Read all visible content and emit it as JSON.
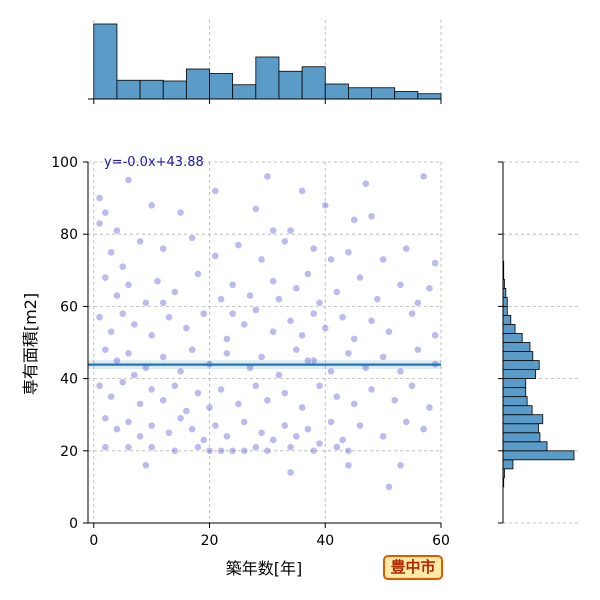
{
  "badge": {
    "label": "豊中市"
  },
  "colors": {
    "histogram": "#5b9bc8",
    "points": "#2a2ad0",
    "regression": "#1f77b4",
    "badge_border": "#e05a00",
    "badge_fill": "#ffe9a8"
  },
  "chart_data": {
    "type": "scatter",
    "xlabel": "築年数[年]",
    "ylabel": "専有面積[m2]",
    "xlim": [
      -1,
      60
    ],
    "ylim": [
      0,
      100
    ],
    "x_ticks": [
      0,
      20,
      40,
      60
    ],
    "y_ticks": [
      0,
      20,
      40,
      60,
      80,
      100
    ],
    "grid": true,
    "regression": {
      "equation": "y=-0.0x+43.88",
      "slope": 0.0,
      "intercept": 43.88
    },
    "x_histogram": {
      "bin_edges": [
        0,
        4,
        8,
        12,
        16,
        20,
        24,
        28,
        32,
        36,
        40,
        44,
        48,
        52,
        56,
        60
      ],
      "heights": [
        100,
        25,
        25,
        24,
        40,
        34,
        19,
        56,
        37,
        43,
        20,
        15,
        15,
        10,
        7
      ]
    },
    "y_histogram": {
      "bin_edges": [
        10,
        12.5,
        15,
        17.5,
        20,
        22.5,
        25,
        27.5,
        30,
        32.5,
        35,
        37.5,
        40,
        42.5,
        45,
        47.5,
        50,
        52.5,
        55,
        57.5,
        60,
        62.5,
        65,
        67.5,
        70,
        72.5,
        75,
        77.5,
        80,
        82.5,
        85,
        87.5,
        90,
        92.5,
        95,
        97.5,
        100
      ],
      "counts": [
        1,
        2,
        14,
        100,
        62,
        52,
        50,
        56,
        41,
        34,
        32,
        32,
        46,
        51,
        42,
        38,
        27,
        17,
        11,
        6,
        6,
        4,
        2,
        1,
        1,
        0,
        0,
        0,
        0,
        0,
        0,
        0,
        0,
        0,
        0,
        0
      ]
    },
    "points": [
      [
        1,
        90
      ],
      [
        2,
        86
      ],
      [
        4,
        81
      ],
      [
        6,
        95
      ],
      [
        10,
        88
      ],
      [
        15,
        86
      ],
      [
        21,
        92
      ],
      [
        28,
        87
      ],
      [
        30,
        96
      ],
      [
        34,
        81
      ],
      [
        36,
        92
      ],
      [
        40,
        88
      ],
      [
        45,
        84
      ],
      [
        47,
        94
      ],
      [
        57,
        96
      ],
      [
        1,
        83
      ],
      [
        3,
        75
      ],
      [
        5,
        71
      ],
      [
        8,
        78
      ],
      [
        12,
        76
      ],
      [
        17,
        79
      ],
      [
        21,
        74
      ],
      [
        25,
        77
      ],
      [
        29,
        73
      ],
      [
        33,
        78
      ],
      [
        38,
        76
      ],
      [
        41,
        73
      ],
      [
        44,
        75
      ],
      [
        50,
        73
      ],
      [
        54,
        76
      ],
      [
        59,
        72
      ],
      [
        2,
        68
      ],
      [
        4,
        63
      ],
      [
        6,
        66
      ],
      [
        9,
        61
      ],
      [
        11,
        67
      ],
      [
        14,
        64
      ],
      [
        18,
        69
      ],
      [
        22,
        62
      ],
      [
        24,
        66
      ],
      [
        27,
        63
      ],
      [
        31,
        67
      ],
      [
        32,
        62
      ],
      [
        35,
        65
      ],
      [
        37,
        69
      ],
      [
        39,
        61
      ],
      [
        42,
        64
      ],
      [
        46,
        68
      ],
      [
        49,
        62
      ],
      [
        53,
        66
      ],
      [
        56,
        61
      ],
      [
        58,
        65
      ],
      [
        1,
        57
      ],
      [
        3,
        53
      ],
      [
        5,
        58
      ],
      [
        7,
        55
      ],
      [
        10,
        52
      ],
      [
        13,
        57
      ],
      [
        16,
        54
      ],
      [
        19,
        58
      ],
      [
        23,
        51
      ],
      [
        26,
        55
      ],
      [
        28,
        59
      ],
      [
        31,
        53
      ],
      [
        34,
        56
      ],
      [
        36,
        52
      ],
      [
        38,
        58
      ],
      [
        40,
        54
      ],
      [
        43,
        57
      ],
      [
        45,
        51
      ],
      [
        48,
        56
      ],
      [
        51,
        53
      ],
      [
        55,
        58
      ],
      [
        59,
        52
      ],
      [
        2,
        48
      ],
      [
        4,
        45
      ],
      [
        6,
        47
      ],
      [
        9,
        43
      ],
      [
        12,
        46
      ],
      [
        15,
        42
      ],
      [
        17,
        48
      ],
      [
        20,
        44
      ],
      [
        23,
        47
      ],
      [
        27,
        43
      ],
      [
        29,
        46
      ],
      [
        32,
        41
      ],
      [
        35,
        48
      ],
      [
        38,
        45
      ],
      [
        41,
        42
      ],
      [
        44,
        47
      ],
      [
        47,
        43
      ],
      [
        50,
        46
      ],
      [
        53,
        42
      ],
      [
        56,
        48
      ],
      [
        59,
        44
      ],
      [
        1,
        38
      ],
      [
        3,
        35
      ],
      [
        5,
        39
      ],
      [
        8,
        33
      ],
      [
        10,
        37
      ],
      [
        12,
        34
      ],
      [
        14,
        38
      ],
      [
        16,
        31
      ],
      [
        18,
        36
      ],
      [
        20,
        32
      ],
      [
        22,
        37
      ],
      [
        25,
        33
      ],
      [
        28,
        38
      ],
      [
        30,
        34
      ],
      [
        33,
        36
      ],
      [
        36,
        32
      ],
      [
        39,
        38
      ],
      [
        42,
        35
      ],
      [
        45,
        33
      ],
      [
        48,
        37
      ],
      [
        52,
        34
      ],
      [
        55,
        38
      ],
      [
        58,
        32
      ],
      [
        2,
        29
      ],
      [
        4,
        26
      ],
      [
        6,
        28
      ],
      [
        8,
        24
      ],
      [
        10,
        27
      ],
      [
        13,
        25
      ],
      [
        15,
        29
      ],
      [
        17,
        26
      ],
      [
        19,
        23
      ],
      [
        21,
        27
      ],
      [
        23,
        24
      ],
      [
        26,
        28
      ],
      [
        29,
        25
      ],
      [
        31,
        23
      ],
      [
        33,
        27
      ],
      [
        35,
        24
      ],
      [
        37,
        26
      ],
      [
        39,
        22
      ],
      [
        41,
        28
      ],
      [
        43,
        23
      ],
      [
        46,
        27
      ],
      [
        50,
        24
      ],
      [
        54,
        28
      ],
      [
        57,
        26
      ],
      [
        2,
        21
      ],
      [
        6,
        21
      ],
      [
        10,
        21
      ],
      [
        14,
        20
      ],
      [
        18,
        21
      ],
      [
        20,
        20
      ],
      [
        22,
        20
      ],
      [
        24,
        20
      ],
      [
        26,
        20
      ],
      [
        28,
        21
      ],
      [
        30,
        20
      ],
      [
        34,
        21
      ],
      [
        38,
        20
      ],
      [
        42,
        21
      ],
      [
        44,
        20
      ],
      [
        34,
        14
      ],
      [
        44,
        16
      ],
      [
        53,
        16
      ],
      [
        51,
        10
      ],
      [
        9,
        16
      ],
      [
        31,
        81
      ],
      [
        48,
        85
      ],
      [
        12,
        61
      ],
      [
        24,
        58
      ],
      [
        37,
        45
      ],
      [
        7,
        41
      ]
    ]
  }
}
